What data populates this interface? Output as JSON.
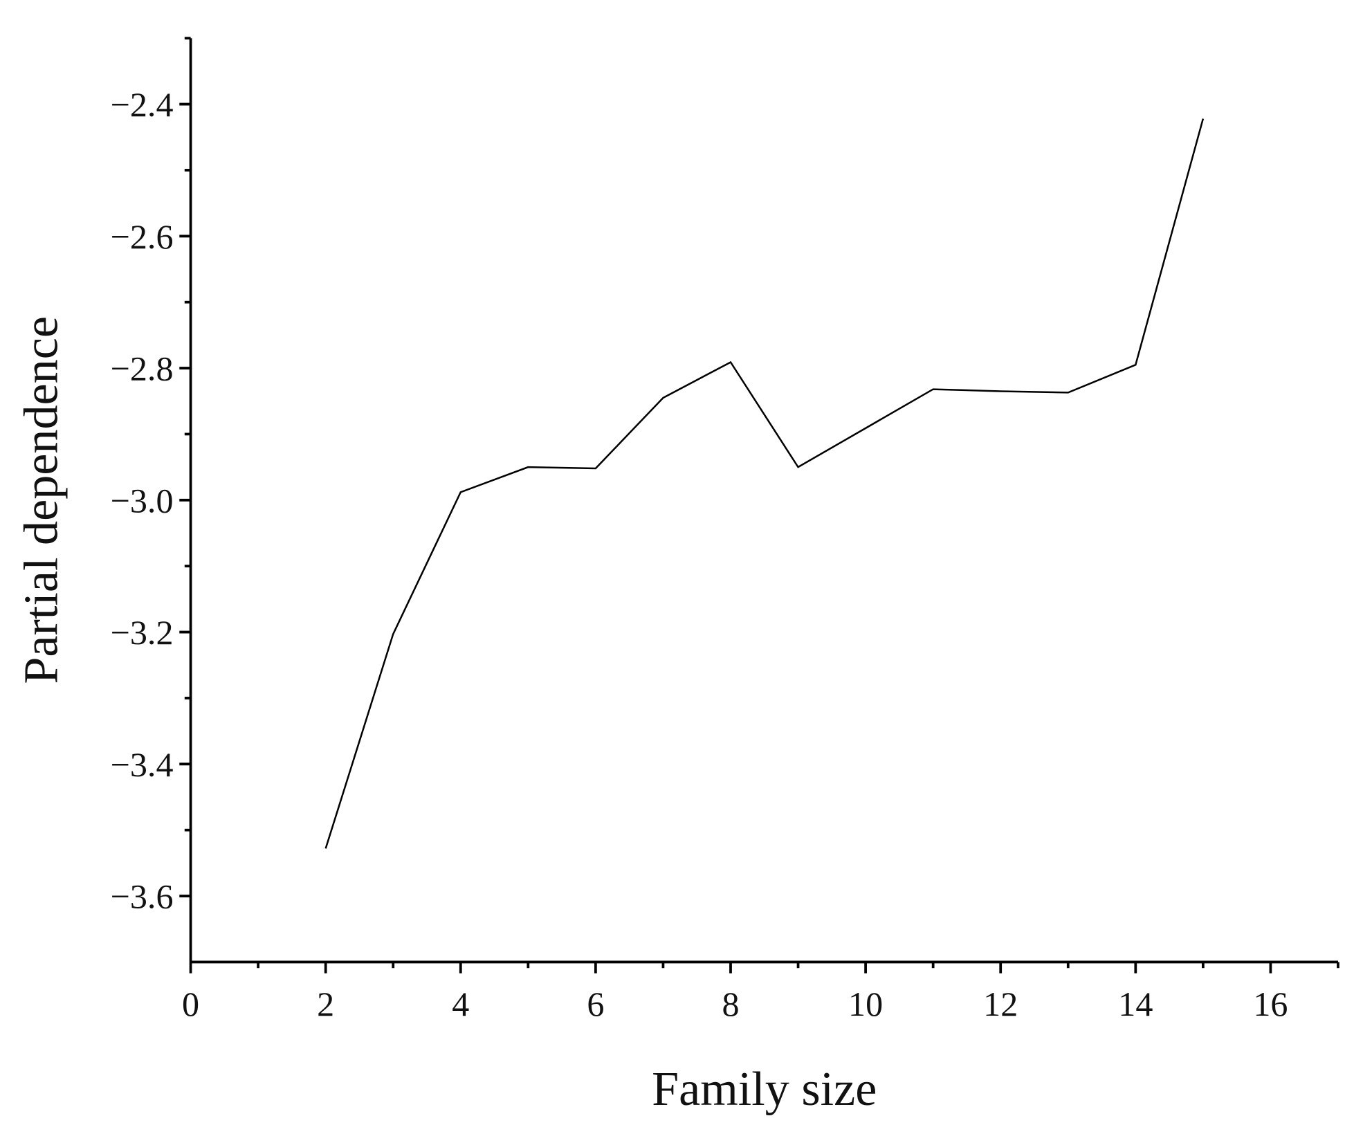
{
  "chart_data": {
    "type": "line",
    "x_label": "Family size",
    "y_label": "Partial dependence",
    "x": [
      2,
      3,
      4,
      5,
      6,
      7,
      8,
      9,
      10,
      11,
      12,
      13,
      14,
      15
    ],
    "series": [
      {
        "color": "#000000",
        "values": [
          -3.528,
          -3.203,
          -2.988,
          -2.95,
          -2.952,
          -2.845,
          -2.791,
          -2.95,
          -2.891,
          -2.832,
          -2.835,
          -2.837,
          -2.795,
          -2.422
        ]
      }
    ],
    "xlim": [
      0,
      17
    ],
    "ylim": [
      -3.7,
      -2.3
    ],
    "xticks": [
      0,
      2,
      4,
      6,
      8,
      10,
      12,
      14,
      16
    ],
    "yticks": [
      {
        "value": -3.6,
        "label": "−3.6"
      },
      {
        "value": -3.4,
        "label": "−3.4"
      },
      {
        "value": -3.2,
        "label": "−3.2"
      },
      {
        "value": -3.0,
        "label": "−3.0"
      },
      {
        "value": -2.8,
        "label": "−2.8"
      },
      {
        "value": -2.6,
        "label": "−2.6"
      },
      {
        "value": -2.4,
        "label": "−2.4"
      }
    ],
    "xminorticks": [
      1,
      3,
      5,
      7,
      9,
      11,
      13,
      15,
      17
    ],
    "yminorticks": [
      -3.5,
      -3.3,
      -3.1,
      -2.9,
      -2.7,
      -2.5,
      -2.3
    ],
    "grid": false
  }
}
